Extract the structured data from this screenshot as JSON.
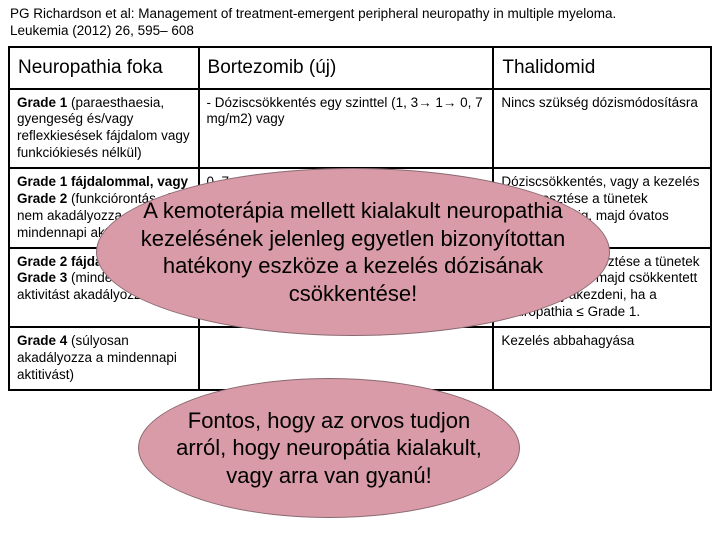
{
  "citation_line1": "PG Richardson et al: Management of treatment-emergent peripheral neuropathy in multiple myeloma.",
  "citation_line2": "Leukemia (2012) 26, 595– 608",
  "header": {
    "col1": "Neuropathia foka",
    "col2": "Bortezomib (új)",
    "col3": "Thalidomid"
  },
  "rows": [
    {
      "c1_bold": "Grade 1",
      "c1_rest": " (paraesthaesia, gyengeség és/vagy reflexkiesések fájdalom vagy funkciókiesés nélkül)",
      "c2": "- Dóziscsökkentés egy szinttel (1, 3→ 1→ 0, 7 mg/m2) vagy",
      "c3": "Nincs szükség dózismódosításra"
    },
    {
      "c1_bold": "Grade 1 fájdalommal, vagy Grade 2",
      "c1_rest": " (funkciórontás, de nem akadályozza a mindennapi aktivitást)",
      "c2": "0, 7mg/m2)\n-Átmeneti felfüggesztés",
      "c3": "Dóziscsökkentés, vagy a kezelés felfüggesztése a tünetek megszűnéséig, majd óvatos visszaállítás"
    },
    {
      "c1_bold": "Grade 2 fájdalommal, vagy Grade 3",
      "c1_rest": " (mindennapi aktivitást akadályozza)",
      "c2": "",
      "c3": "Kezelés felfüggesztése a tünetek megszűnéséig, majd csökkentett dózissal újrakezdeni, ha a neuropathia ≤ Grade 1."
    },
    {
      "c1_bold": "Grade 4",
      "c1_rest": " (súlyosan akadályozza a mindennapi aktitivást)",
      "c2": "",
      "c3": "Kezelés abbahagyása"
    }
  ],
  "callout1": "A kemoterápia mellett kialakult neuropathia kezelésének jelenleg egyetlen bizonyítottan hatékony eszköze a kezelés dózisának csökkentése!",
  "callout2": "Fontos, hogy az orvos tudjon arról, hogy neuropátia kialakult, vagy arra van gyanú!",
  "colors": {
    "callout_fill": "#d99ba7",
    "callout_border": "#8a6a72",
    "table_border": "#000000",
    "background": "#ffffff"
  },
  "fonts": {
    "citation_size": 13.5,
    "header_size": 19,
    "cell_size": 13.5,
    "callout_size": 22
  }
}
